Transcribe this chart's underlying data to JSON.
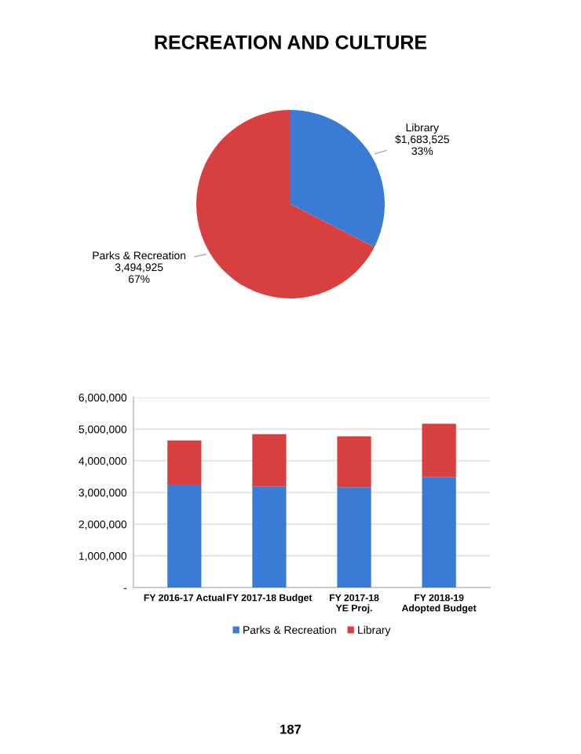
{
  "chart_data": [
    {
      "type": "pie",
      "title": "RECREATION AND CULTURE",
      "categories": [
        "Library",
        "Parks & Recreation"
      ],
      "values": [
        1683525,
        3494925
      ],
      "colors": [
        "#3a7bd5",
        "#d84040"
      ],
      "value_labels": [
        "$1,683,525\n33%",
        "3,494,925\n67%"
      ]
    },
    {
      "type": "bar",
      "stacked": true,
      "categories": [
        "FY 2016-17 Actual",
        "FY 2017-18 Budget",
        "FY 2017-18\nYE Proj.",
        "FY 2018-19\nAdopted Budget"
      ],
      "series": [
        {
          "name": "Parks & Recreation",
          "color": "#3a7bd5",
          "values": [
            3250000,
            3180000,
            3170000,
            3490000
          ]
        },
        {
          "name": "Library",
          "color": "#d84040",
          "values": [
            1390000,
            1660000,
            1600000,
            1680000
          ]
        }
      ],
      "ylim": [
        0,
        6000000
      ],
      "yticks": [
        {
          "value": 0,
          "label": "-"
        },
        {
          "value": 1000000,
          "label": "1,000,000"
        },
        {
          "value": 2000000,
          "label": "2,000,000"
        },
        {
          "value": 3000000,
          "label": "3,000,000"
        },
        {
          "value": 4000000,
          "label": "4,000,000"
        },
        {
          "value": 5000000,
          "label": "5,000,000"
        },
        {
          "value": 6000000,
          "label": "6,000,000"
        }
      ],
      "grid": "y",
      "legend": "bottom",
      "annotations": [
        "187"
      ]
    }
  ]
}
